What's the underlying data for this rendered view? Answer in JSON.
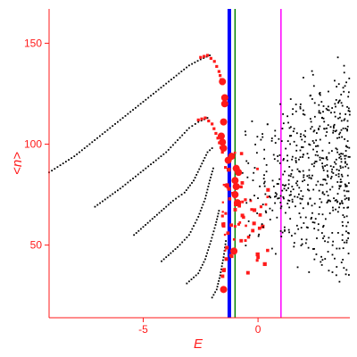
{
  "chart_data": {
    "type": "scatter",
    "xlabel": "E",
    "ylabel": "<n>",
    "xlim": [
      -9.1,
      4.0
    ],
    "ylim": [
      14,
      167
    ],
    "xticks": [
      -5,
      0
    ],
    "xtick_labels": [
      "-5",
      "0"
    ],
    "yticks": [
      50,
      100,
      150
    ],
    "ytick_labels": [
      "50",
      "100",
      "150"
    ],
    "grid": false,
    "colors": {
      "axes": "#ff1a1a",
      "black_points": "#000000",
      "red_points": "#ff1a1a",
      "line_blue": "#0000ff",
      "line_green": "#008000",
      "line_magenta": "#ff00ff"
    },
    "vertical_lines": [
      {
        "name": "blue",
        "x": -1.25,
        "color": "#0000ff",
        "width": 4
      },
      {
        "name": "green",
        "x": -1.0,
        "color": "#008000",
        "width": 1.5
      },
      {
        "name": "magenta",
        "x": 1.0,
        "color": "#ff00ff",
        "width": 1.5
      }
    ],
    "series": [
      {
        "kind": "band",
        "color": "#000000",
        "points": [
          [
            -9.1,
            86
          ],
          [
            -8,
            94
          ],
          [
            -7,
            103
          ],
          [
            -6,
            112
          ],
          [
            -5,
            121
          ],
          [
            -4,
            130
          ],
          [
            -3,
            139
          ],
          [
            -2.5,
            142
          ],
          [
            -2.1,
            144
          ]
        ]
      },
      {
        "kind": "band",
        "color": "#000000",
        "points": [
          [
            -7.1,
            69
          ],
          [
            -6,
            78
          ],
          [
            -5,
            87
          ],
          [
            -4,
            96
          ],
          [
            -3.5,
            102
          ],
          [
            -3,
            108
          ],
          [
            -2.6,
            111
          ],
          [
            -2.2,
            113
          ]
        ]
      },
      {
        "kind": "band",
        "color": "#000000",
        "points": [
          [
            -5.4,
            55
          ],
          [
            -4.5,
            64
          ],
          [
            -3.7,
            72
          ],
          [
            -3.2,
            76
          ],
          [
            -2.8,
            82
          ],
          [
            -2.5,
            89
          ],
          [
            -2.2,
            96
          ],
          [
            -2.0,
            98
          ]
        ]
      },
      {
        "kind": "band",
        "color": "#000000",
        "points": [
          [
            -4.2,
            42
          ],
          [
            -3.5,
            49
          ],
          [
            -3.0,
            55
          ],
          [
            -2.6,
            64
          ],
          [
            -2.3,
            73
          ],
          [
            -2.1,
            82
          ],
          [
            -1.95,
            88
          ]
        ]
      },
      {
        "kind": "band",
        "color": "#000000",
        "points": [
          [
            -3.1,
            31
          ],
          [
            -2.6,
            36
          ],
          [
            -2.3,
            43
          ],
          [
            -2.05,
            52
          ],
          [
            -1.85,
            60
          ],
          [
            -1.7,
            67
          ]
        ]
      },
      {
        "kind": "band",
        "color": "#000000",
        "points": [
          [
            -2.0,
            24
          ],
          [
            -1.8,
            28
          ],
          [
            -1.65,
            35
          ],
          [
            -1.5,
            44
          ],
          [
            -1.4,
            52
          ]
        ]
      },
      {
        "kind": "band",
        "color": "#ff1a1a",
        "marker": "square",
        "points": [
          [
            -2.5,
            143
          ],
          [
            -2.2,
            144
          ],
          [
            -1.9,
            141
          ],
          [
            -1.7,
            136
          ],
          [
            -1.55,
            130
          ]
        ]
      },
      {
        "kind": "band",
        "color": "#ff1a1a",
        "marker": "square",
        "points": [
          [
            -2.6,
            112
          ],
          [
            -2.3,
            113
          ],
          [
            -2.0,
            110
          ],
          [
            -1.75,
            103
          ],
          [
            -1.55,
            96
          ]
        ]
      },
      {
        "kind": "scatter",
        "color": "#ff1a1a",
        "marker": "square",
        "seed": 7,
        "count": 70,
        "x_range": [
          -1.55,
          0.5
        ],
        "y_range": [
          28,
          100
        ]
      },
      {
        "kind": "scatter",
        "color": "#000000",
        "marker": "dot",
        "seed": 13,
        "count": 560,
        "x_range": [
          -0.9,
          4.0
        ],
        "y_range": [
          42,
          158
        ]
      }
    ],
    "highlight_points": [
      [
        -1.45,
        120
      ],
      [
        -1.45,
        123
      ],
      [
        -1.55,
        131
      ],
      [
        -1.5,
        111
      ],
      [
        -1.6,
        104
      ],
      [
        -1.55,
        101
      ],
      [
        -1.5,
        98
      ],
      [
        -1.3,
        92
      ],
      [
        -1.15,
        94
      ],
      [
        -0.95,
        88
      ],
      [
        -0.85,
        86
      ],
      [
        -1.0,
        82
      ],
      [
        -0.95,
        79
      ],
      [
        -1.0,
        75
      ],
      [
        -0.9,
        71
      ],
      [
        -1.05,
        47
      ],
      [
        -1.5,
        28
      ]
    ]
  }
}
